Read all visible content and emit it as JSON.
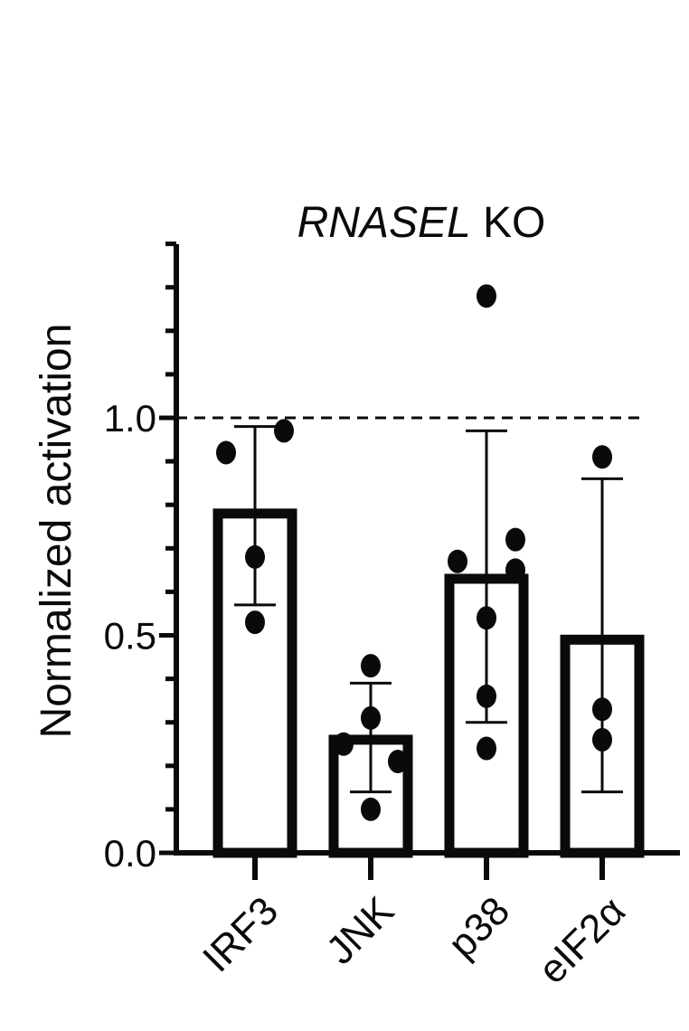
{
  "chart_data": {
    "type": "bar",
    "title_italic": "RNASEL",
    "title_rest": " KO",
    "ylabel": "Normalized activation",
    "xlabel": "",
    "ylim": [
      0,
      1.4
    ],
    "yticks": [
      0.0,
      0.5,
      1.0
    ],
    "ytick_labels": [
      "0.0",
      "0.5",
      "1.0"
    ],
    "minor_tick_step": 0.1,
    "reference_line": 1.0,
    "grid": false,
    "legend": "none",
    "colors": {
      "bar_stroke": "#0a0a0a",
      "bar_fill": "#ffffff",
      "points": "#0a0a0a"
    },
    "categories": [
      "IRF3",
      "JNK",
      "p38",
      "eIF2α"
    ],
    "values": [
      0.78,
      0.26,
      0.63,
      0.49
    ],
    "error_high": [
      0.98,
      0.39,
      0.97,
      0.86
    ],
    "error_low": [
      0.57,
      0.14,
      0.3,
      0.14
    ],
    "points": [
      [
        {
          "y": 0.92,
          "jitter": -0.8
        },
        {
          "y": 0.97,
          "jitter": 0.8
        },
        {
          "y": 0.68,
          "jitter": 0.0
        },
        {
          "y": 0.53,
          "jitter": 0.0
        }
      ],
      [
        {
          "y": 0.43,
          "jitter": 0.0
        },
        {
          "y": 0.31,
          "jitter": 0.0
        },
        {
          "y": 0.25,
          "jitter": -0.75
        },
        {
          "y": 0.21,
          "jitter": 0.75
        },
        {
          "y": 0.1,
          "jitter": 0.0
        }
      ],
      [
        {
          "y": 1.28,
          "jitter": 0.0
        },
        {
          "y": 0.72,
          "jitter": 0.8
        },
        {
          "y": 0.67,
          "jitter": -0.8
        },
        {
          "y": 0.65,
          "jitter": 0.8
        },
        {
          "y": 0.54,
          "jitter": 0.0
        },
        {
          "y": 0.36,
          "jitter": 0.0
        },
        {
          "y": 0.24,
          "jitter": 0.0
        }
      ],
      [
        {
          "y": 0.91,
          "jitter": 0.0
        },
        {
          "y": 0.33,
          "jitter": 0.0
        },
        {
          "y": 0.26,
          "jitter": 0.0
        }
      ]
    ]
  }
}
